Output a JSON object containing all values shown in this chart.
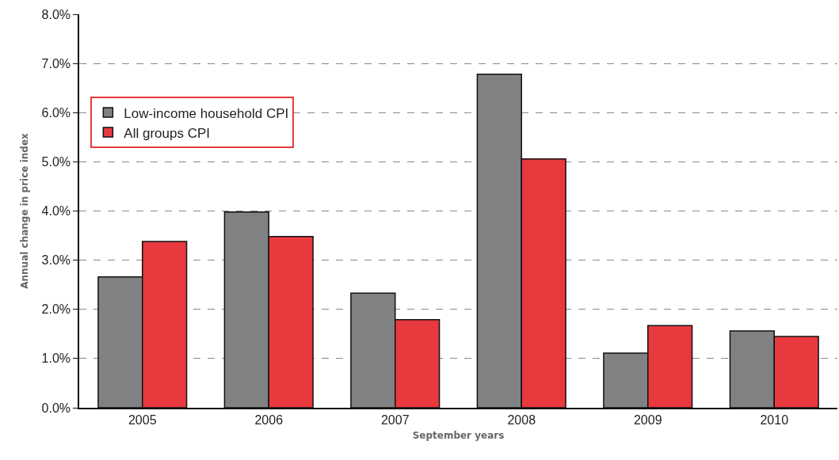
{
  "chart_data": {
    "type": "bar",
    "xlabel": "September years",
    "ylabel": "Annual change in price index",
    "categories": [
      "2005",
      "2006",
      "2007",
      "2008",
      "2009",
      "2010"
    ],
    "series": [
      {
        "name": "Low-income household CPI",
        "color": "#7f8183",
        "values": [
          2.66,
          3.98,
          2.33,
          6.78,
          1.11,
          1.56
        ]
      },
      {
        "name": "All groups CPI",
        "color": "#e8393f",
        "values": [
          3.38,
          3.48,
          1.79,
          5.06,
          1.67,
          1.45
        ]
      }
    ],
    "ylim": [
      0,
      8
    ],
    "yticks": [
      {
        "value": 0,
        "label": "0.0%"
      },
      {
        "value": 1,
        "label": "1.0%"
      },
      {
        "value": 2,
        "label": "2.0%"
      },
      {
        "value": 3,
        "label": "3.0%"
      },
      {
        "value": 4,
        "label": "4.0%"
      },
      {
        "value": 5,
        "label": "5.0%"
      },
      {
        "value": 6,
        "label": "6.0%"
      },
      {
        "value": 7,
        "label": "7.0%"
      },
      {
        "value": 8,
        "label": "8.0%"
      }
    ],
    "grid": "y",
    "legend": "top left"
  }
}
